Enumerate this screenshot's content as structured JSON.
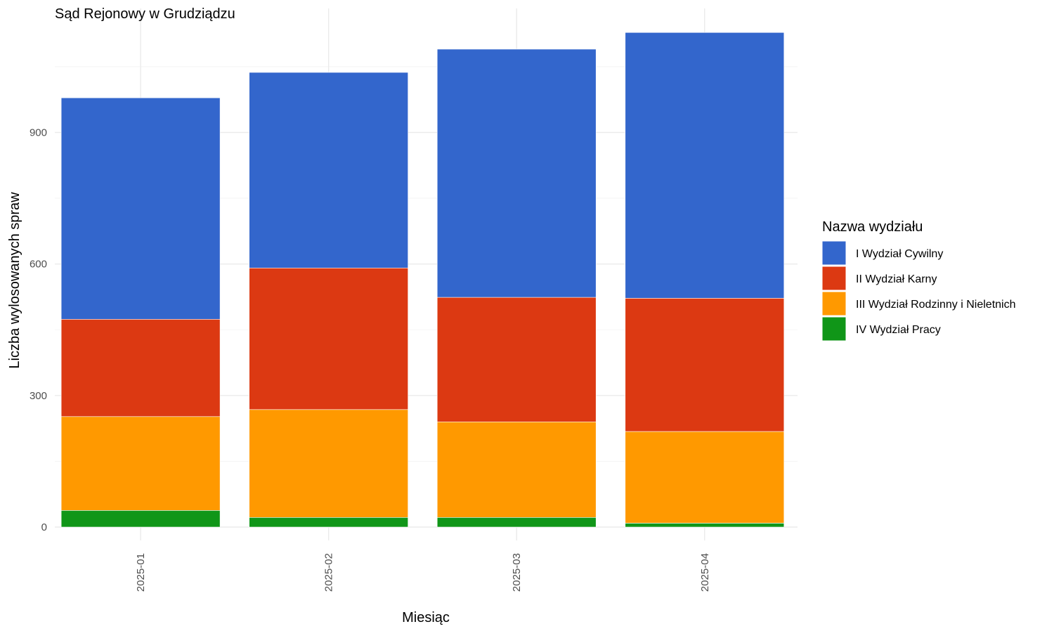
{
  "chart_data": {
    "type": "bar",
    "stacked": true,
    "title": "Sąd Rejonowy w Grudziądzu",
    "xlabel": "Miesiąc",
    "ylabel": "Liczba wylosowanych spraw",
    "categories": [
      "2025-01",
      "2025-02",
      "2025-03",
      "2025-04"
    ],
    "y_ticks": [
      0,
      300,
      600,
      900
    ],
    "y_tick_labels": [
      "0",
      "300",
      "600",
      "900"
    ],
    "ylim": [
      0,
      1180
    ],
    "grid": true,
    "legend": {
      "title": "Nazwa wydziału",
      "position": "right"
    },
    "series": [
      {
        "name": "IV Wydział Pracy",
        "color": "#109618",
        "values": [
          38,
          22,
          22,
          9
        ]
      },
      {
        "name": "III Wydział Rodzinny i Nieletnich",
        "color": "#FF9900",
        "values": [
          214,
          246,
          218,
          209
        ]
      },
      {
        "name": "II Wydział Karny",
        "color": "#DC3912",
        "values": [
          222,
          323,
          284,
          304
        ]
      },
      {
        "name": "I Wydział Cywilny",
        "color": "#3366CC",
        "values": [
          505,
          446,
          566,
          606
        ]
      }
    ],
    "legend_order": [
      "I Wydział Cywilny",
      "II Wydział Karny",
      "III Wydział Rodzinny i Nieletnich",
      "IV Wydział Pracy"
    ]
  }
}
